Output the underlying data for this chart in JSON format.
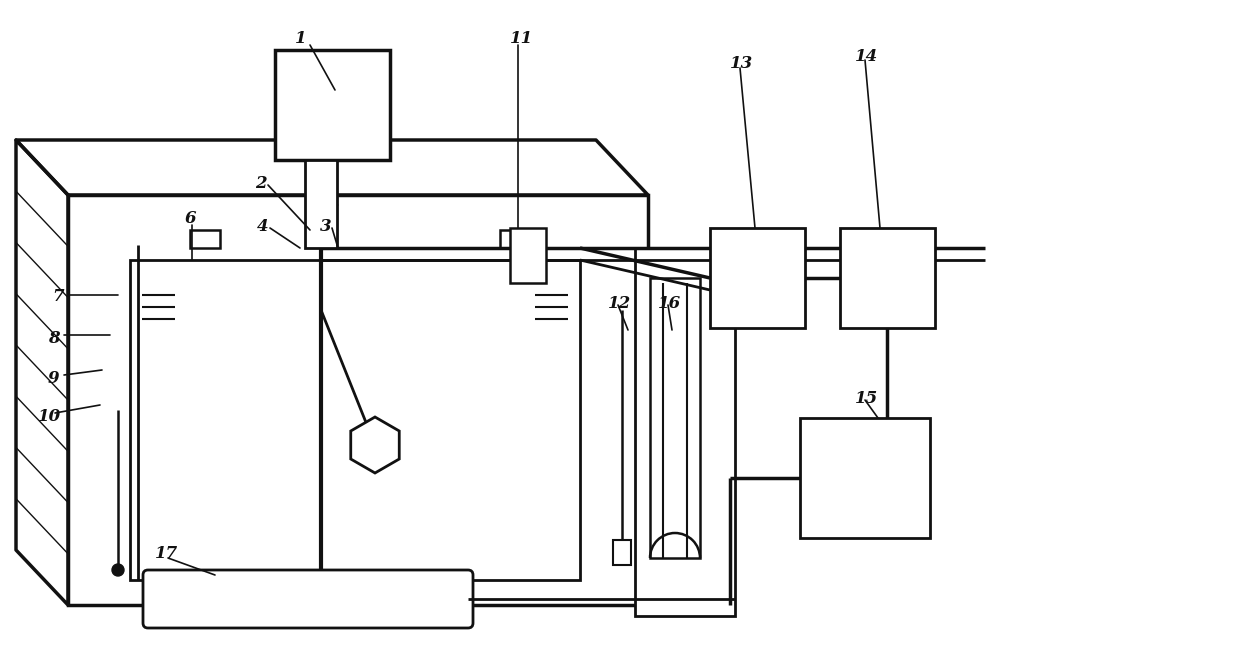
{
  "bg": "#ffffff",
  "lc": "#111111",
  "lw": 2.0,
  "label_fs": 12,
  "figsize": [
    12.39,
    6.7
  ],
  "dpi": 100
}
